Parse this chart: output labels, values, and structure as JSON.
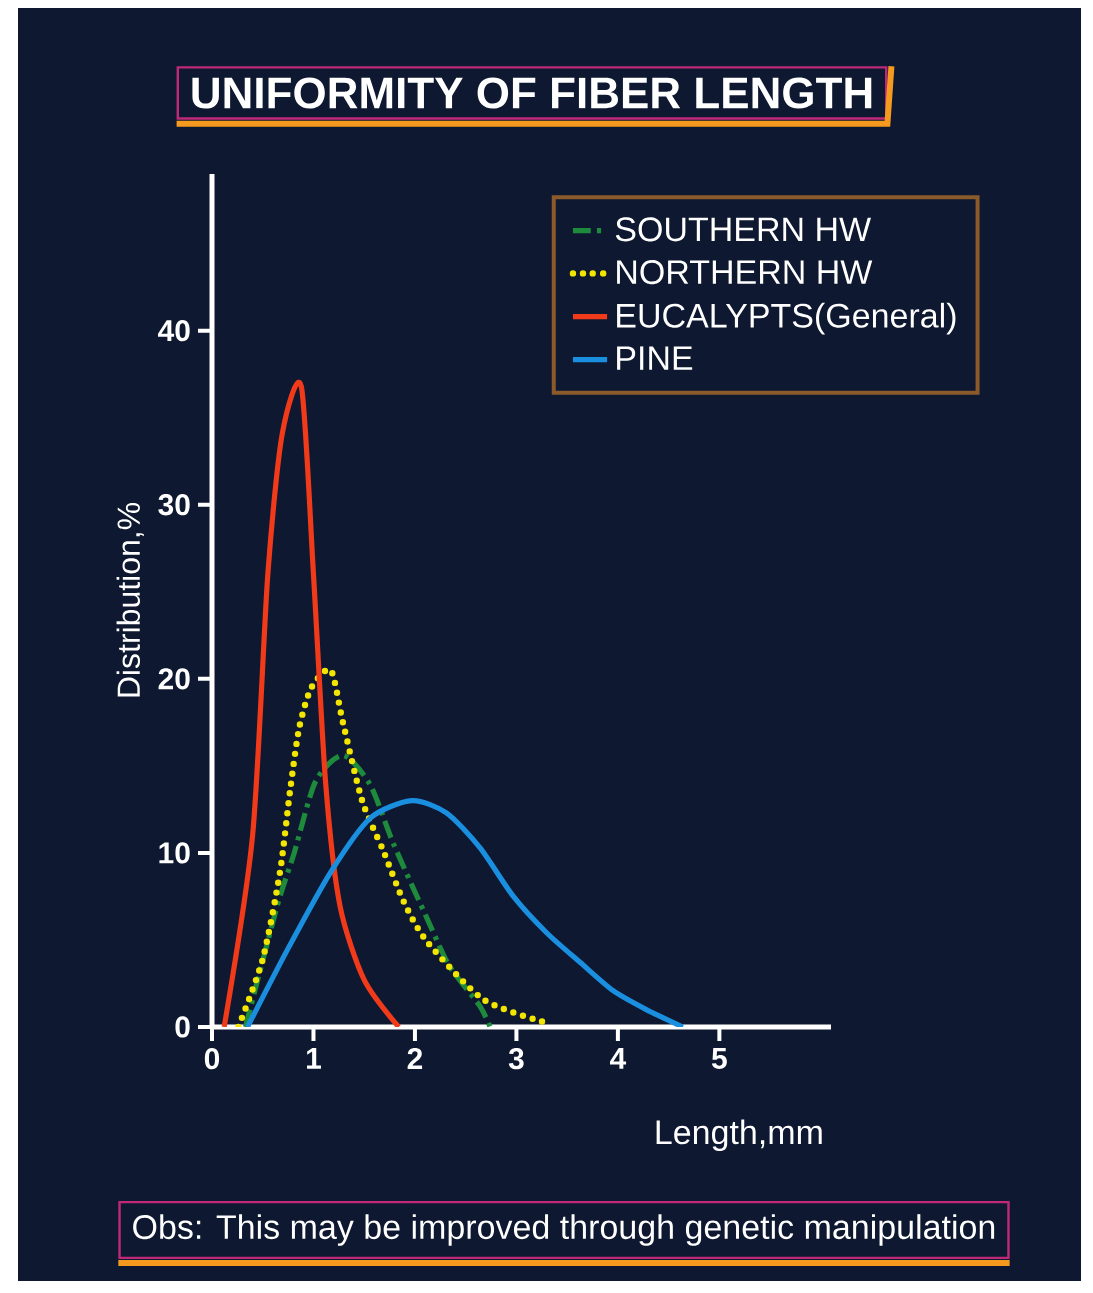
{
  "chart_data": {
    "type": "line",
    "title": "UNIFORMITY OF FIBER LENGTH",
    "xlabel": "Length,mm",
    "ylabel": "Distribution,%",
    "annotations": [
      "Obs: This may be improved through genetic manipulation"
    ],
    "xlim": [
      0,
      6.1
    ],
    "ylim": [
      0,
      49
    ],
    "xticks": [
      0,
      1,
      2,
      3,
      4,
      5
    ],
    "yticks": [
      0,
      10,
      20,
      30,
      40
    ],
    "grid": false,
    "legend": "top right",
    "marker": "none",
    "series": [
      {
        "name": "SOUTHERN HW",
        "color": "#1e8a3c",
        "line_style": "dashed",
        "x": [
          0.33,
          0.64,
          0.81,
          1.02,
          1.29,
          1.56,
          1.79,
          2.13,
          2.34,
          2.64,
          2.74
        ],
        "values": [
          0,
          6.9,
          10,
          14.1,
          15.6,
          13.9,
          10.5,
          6.1,
          3.5,
          1.2,
          0
        ]
      },
      {
        "name": "NORTHERN HW",
        "color": "#f2e600",
        "line_style": "dotted",
        "x": [
          0.26,
          0.5,
          0.67,
          0.77,
          0.86,
          0.98,
          1.17,
          1.29,
          1.48,
          1.69,
          1.89,
          2.12,
          2.67,
          3.26
        ],
        "values": [
          0,
          3.9,
          8.9,
          13.6,
          17.2,
          19.5,
          20.5,
          17.5,
          13,
          10.1,
          7.2,
          4.9,
          1.6,
          0.3
        ]
      },
      {
        "name": "EUCALYPTS(General)",
        "color": "#f03a1a",
        "line_style": "solid",
        "x": [
          0.12,
          0.4,
          0.55,
          0.69,
          0.88,
          1.0,
          1.12,
          1.26,
          1.5,
          1.84
        ],
        "values": [
          0,
          11,
          26,
          34,
          36.8,
          26,
          14,
          7,
          2.7,
          0
        ]
      },
      {
        "name": "PINE",
        "color": "#1a8fe0",
        "line_style": "solid",
        "x": [
          0.35,
          0.74,
          1.17,
          1.56,
          1.97,
          2.31,
          2.64,
          2.97,
          3.3,
          3.63,
          3.95,
          4.28,
          4.64
        ],
        "values": [
          0,
          4.4,
          8.9,
          12,
          13,
          12.3,
          10.3,
          7.5,
          5.4,
          3.7,
          2.1,
          1.0,
          0
        ]
      }
    ]
  }
}
